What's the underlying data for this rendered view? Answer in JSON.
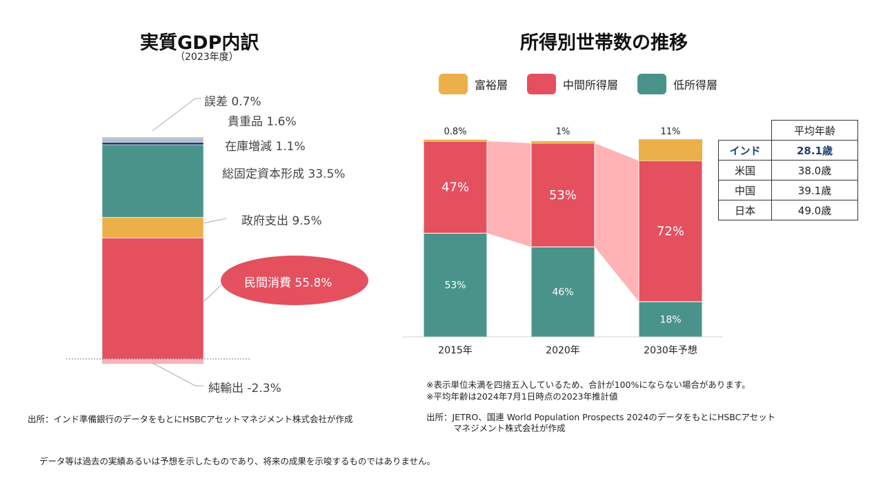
{
  "left": {
    "title": "実質GDP内訳",
    "subtitle": "（2023年度）",
    "source": "出所：インド準備銀行のデータをもとにHSBCアセットマネジメント株式会社が作成"
  },
  "right": {
    "title": "所得別世帯数の推移",
    "notes": [
      "※表示単位未満を四捨五入しているため、合計が100%にならない場合があります。",
      "※平均年齢は2024年7月1日時点の2023年推計値"
    ],
    "source_line1": "出所：JETRO、国連 World Population Prospects 2024のデータをもとにHSBCアセット",
    "source_line2": "マネジメント株式会社が作成",
    "age_table": {
      "header": "平均年齢",
      "rows": [
        {
          "country": "インド",
          "age": "28.1歳",
          "highlight": true
        },
        {
          "country": "米国",
          "age": "38.0歳",
          "highlight": false
        },
        {
          "country": "中国",
          "age": "39.1歳",
          "highlight": false
        },
        {
          "country": "日本",
          "age": "49.0歳",
          "highlight": false
        }
      ]
    }
  },
  "footer": {
    "disclaimer": "データ等は過去の実績あるいは予想を示したものであり、将来の成果を示唆するものではありません。"
  },
  "chart_data": [
    {
      "type": "bar",
      "stacked": true,
      "title": "実質GDP内訳",
      "subtitle": "（2023年度）",
      "categories": [
        "2023年度"
      ],
      "series": [
        {
          "key": "private",
          "name": "民間消費",
          "value": 55.8,
          "label": "民間消費 55.8%",
          "color": "#e5505e"
        },
        {
          "key": "gov",
          "name": "政府支出",
          "value": 9.5,
          "label": "政府支出 9.5%",
          "color": "#ebb04a"
        },
        {
          "key": "gfcf",
          "name": "総固定資本形成",
          "value": 33.5,
          "label": "総固定資本形成 33.5%",
          "color": "#4a938b"
        },
        {
          "key": "inventory",
          "name": "在庫増減",
          "value": 1.1,
          "label": "在庫増減 1.1%",
          "color": "#1d3d6d"
        },
        {
          "key": "valuables",
          "name": "貴重品",
          "value": 1.6,
          "label": "貴重品 1.6%",
          "color": "#a9bcd3"
        },
        {
          "key": "error",
          "name": "誤差",
          "value": 0.7,
          "label": "誤差 0.7%",
          "color": "#9aa0a8"
        },
        {
          "key": "netexport",
          "name": "純輸出",
          "value": -2.3,
          "label": "純輸出 -2.3%",
          "color": "#f4b4b8"
        }
      ],
      "ylim": [
        -2.3,
        102.2
      ],
      "unit": "%"
    },
    {
      "type": "bar",
      "stacked": true,
      "title": "所得別世帯数の推移",
      "categories": [
        "2015年",
        "2020年",
        "2030年予想"
      ],
      "legend": [
        {
          "name": "富裕層",
          "color": "#ebb04a"
        },
        {
          "name": "中間所得層",
          "color": "#e5505e"
        },
        {
          "name": "低所得層",
          "color": "#4a938b"
        }
      ],
      "series": [
        {
          "name": "低所得層",
          "values": [
            53,
            46,
            18
          ],
          "labels": [
            "53%",
            "46%",
            "18%"
          ],
          "color": "#4a938b"
        },
        {
          "name": "中間所得層",
          "values": [
            47,
            53,
            72
          ],
          "labels": [
            "47%",
            "53%",
            "72%"
          ],
          "color": "#e5505e"
        },
        {
          "name": "富裕層",
          "values": [
            0.8,
            1,
            11
          ],
          "labels": [
            "0.8%",
            "1%",
            "11%"
          ],
          "color": "#ebb04a"
        }
      ],
      "connector_color": "#ffb3b5",
      "ylim": [
        0,
        101
      ]
    }
  ]
}
